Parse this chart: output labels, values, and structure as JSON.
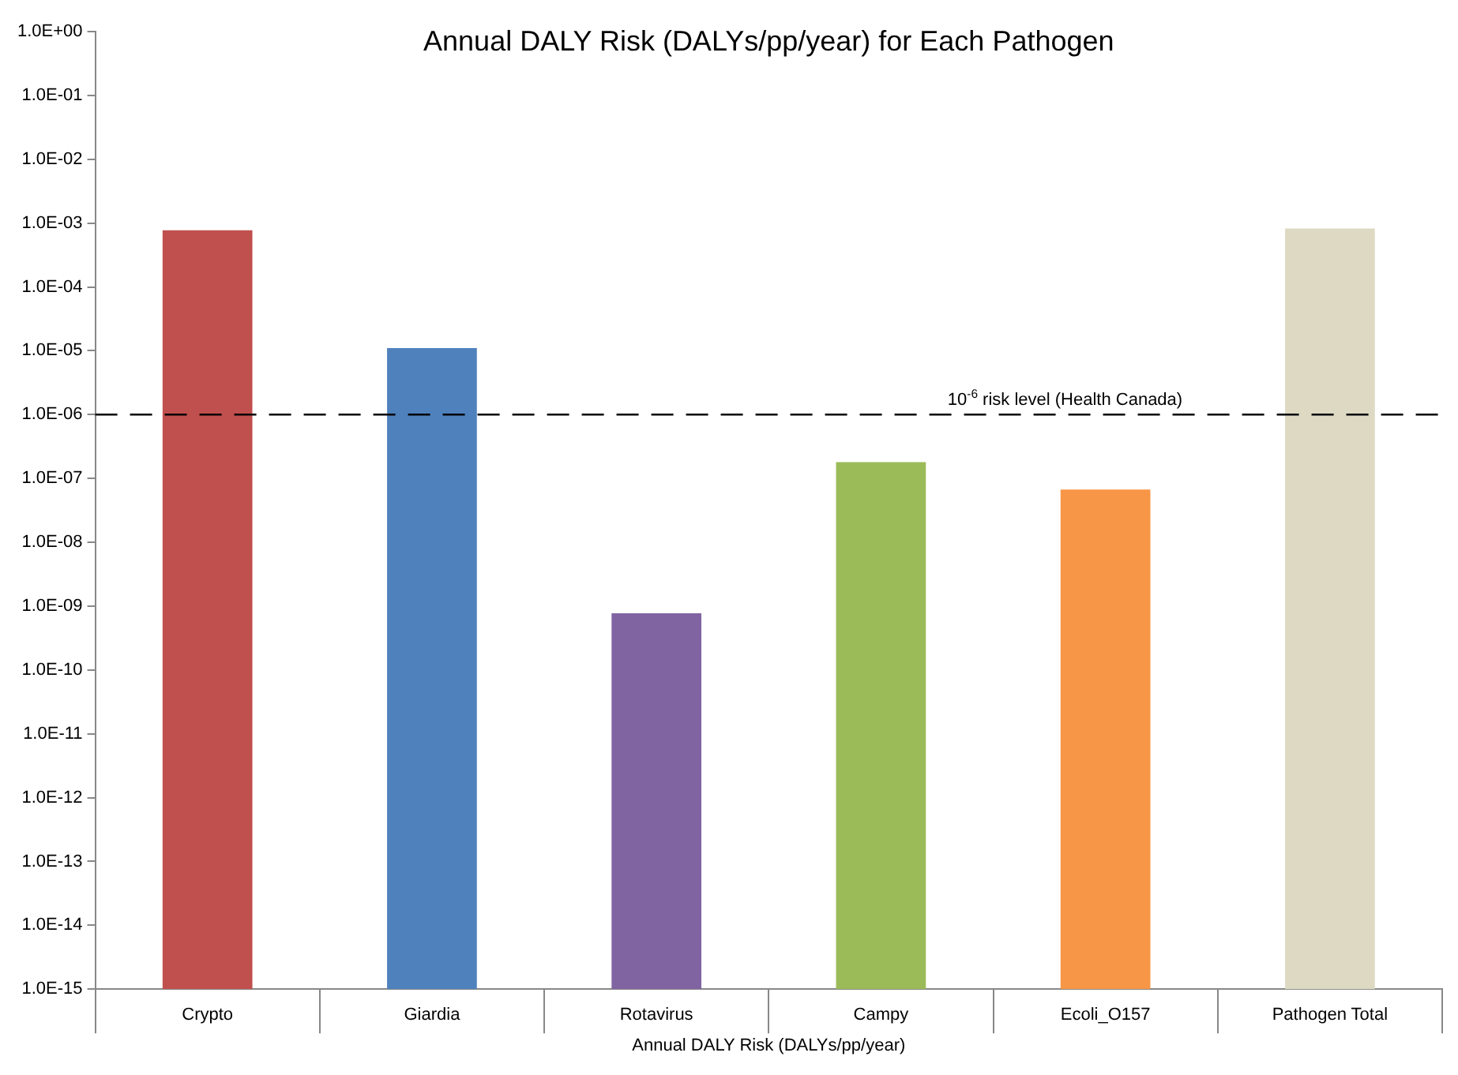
{
  "chart_data": {
    "type": "bar",
    "title": "Annual DALY Risk (DALYs/pp/year) for Each Pathogen",
    "xlabel": "Annual DALY Risk (DALYs/pp/year)",
    "categories": [
      "Crypto",
      "Giardia",
      "Rotavirus",
      "Campy",
      "Ecoli_O157",
      "Pathogen Total"
    ],
    "values": [
      0.00077,
      1.1e-05,
      7.7e-10,
      1.8e-07,
      6.7e-08,
      0.00082
    ],
    "colors": [
      "#c0504d",
      "#4f81bd",
      "#8064a2",
      "#9bbb59",
      "#f79646",
      "#ddd9c3"
    ],
    "log": "y",
    "ylim": [
      1e-15,
      1
    ],
    "yticks": [
      {
        "value": 1e-15,
        "label": "1.0E-15"
      },
      {
        "value": 1e-14,
        "label": "1.0E-14"
      },
      {
        "value": 1e-13,
        "label": "1.0E-13"
      },
      {
        "value": 1e-12,
        "label": "1.0E-12"
      },
      {
        "value": 1e-11,
        "label": "1.0E-11"
      },
      {
        "value": 1e-10,
        "label": "1.0E-10"
      },
      {
        "value": 1e-09,
        "label": "1.0E-09"
      },
      {
        "value": 1e-08,
        "label": "1.0E-08"
      },
      {
        "value": 1e-07,
        "label": "1.0E-07"
      },
      {
        "value": 1e-06,
        "label": "1.0E-06"
      },
      {
        "value": 1e-05,
        "label": "1.0E-05"
      },
      {
        "value": 0.0001,
        "label": "1.0E-04"
      },
      {
        "value": 0.001,
        "label": "1.0E-03"
      },
      {
        "value": 0.01,
        "label": "1.0E-02"
      },
      {
        "value": 0.1,
        "label": "1.0E-01"
      },
      {
        "value": 1,
        "label": "1.0E+00"
      }
    ],
    "grid": false,
    "legend": false,
    "ref_lines": [
      {
        "axis": "y",
        "value": 1e-06,
        "label": "10$^{-6}$ risk level (Health Canada)",
        "color": "#000000",
        "line_style": "dashed"
      }
    ]
  }
}
